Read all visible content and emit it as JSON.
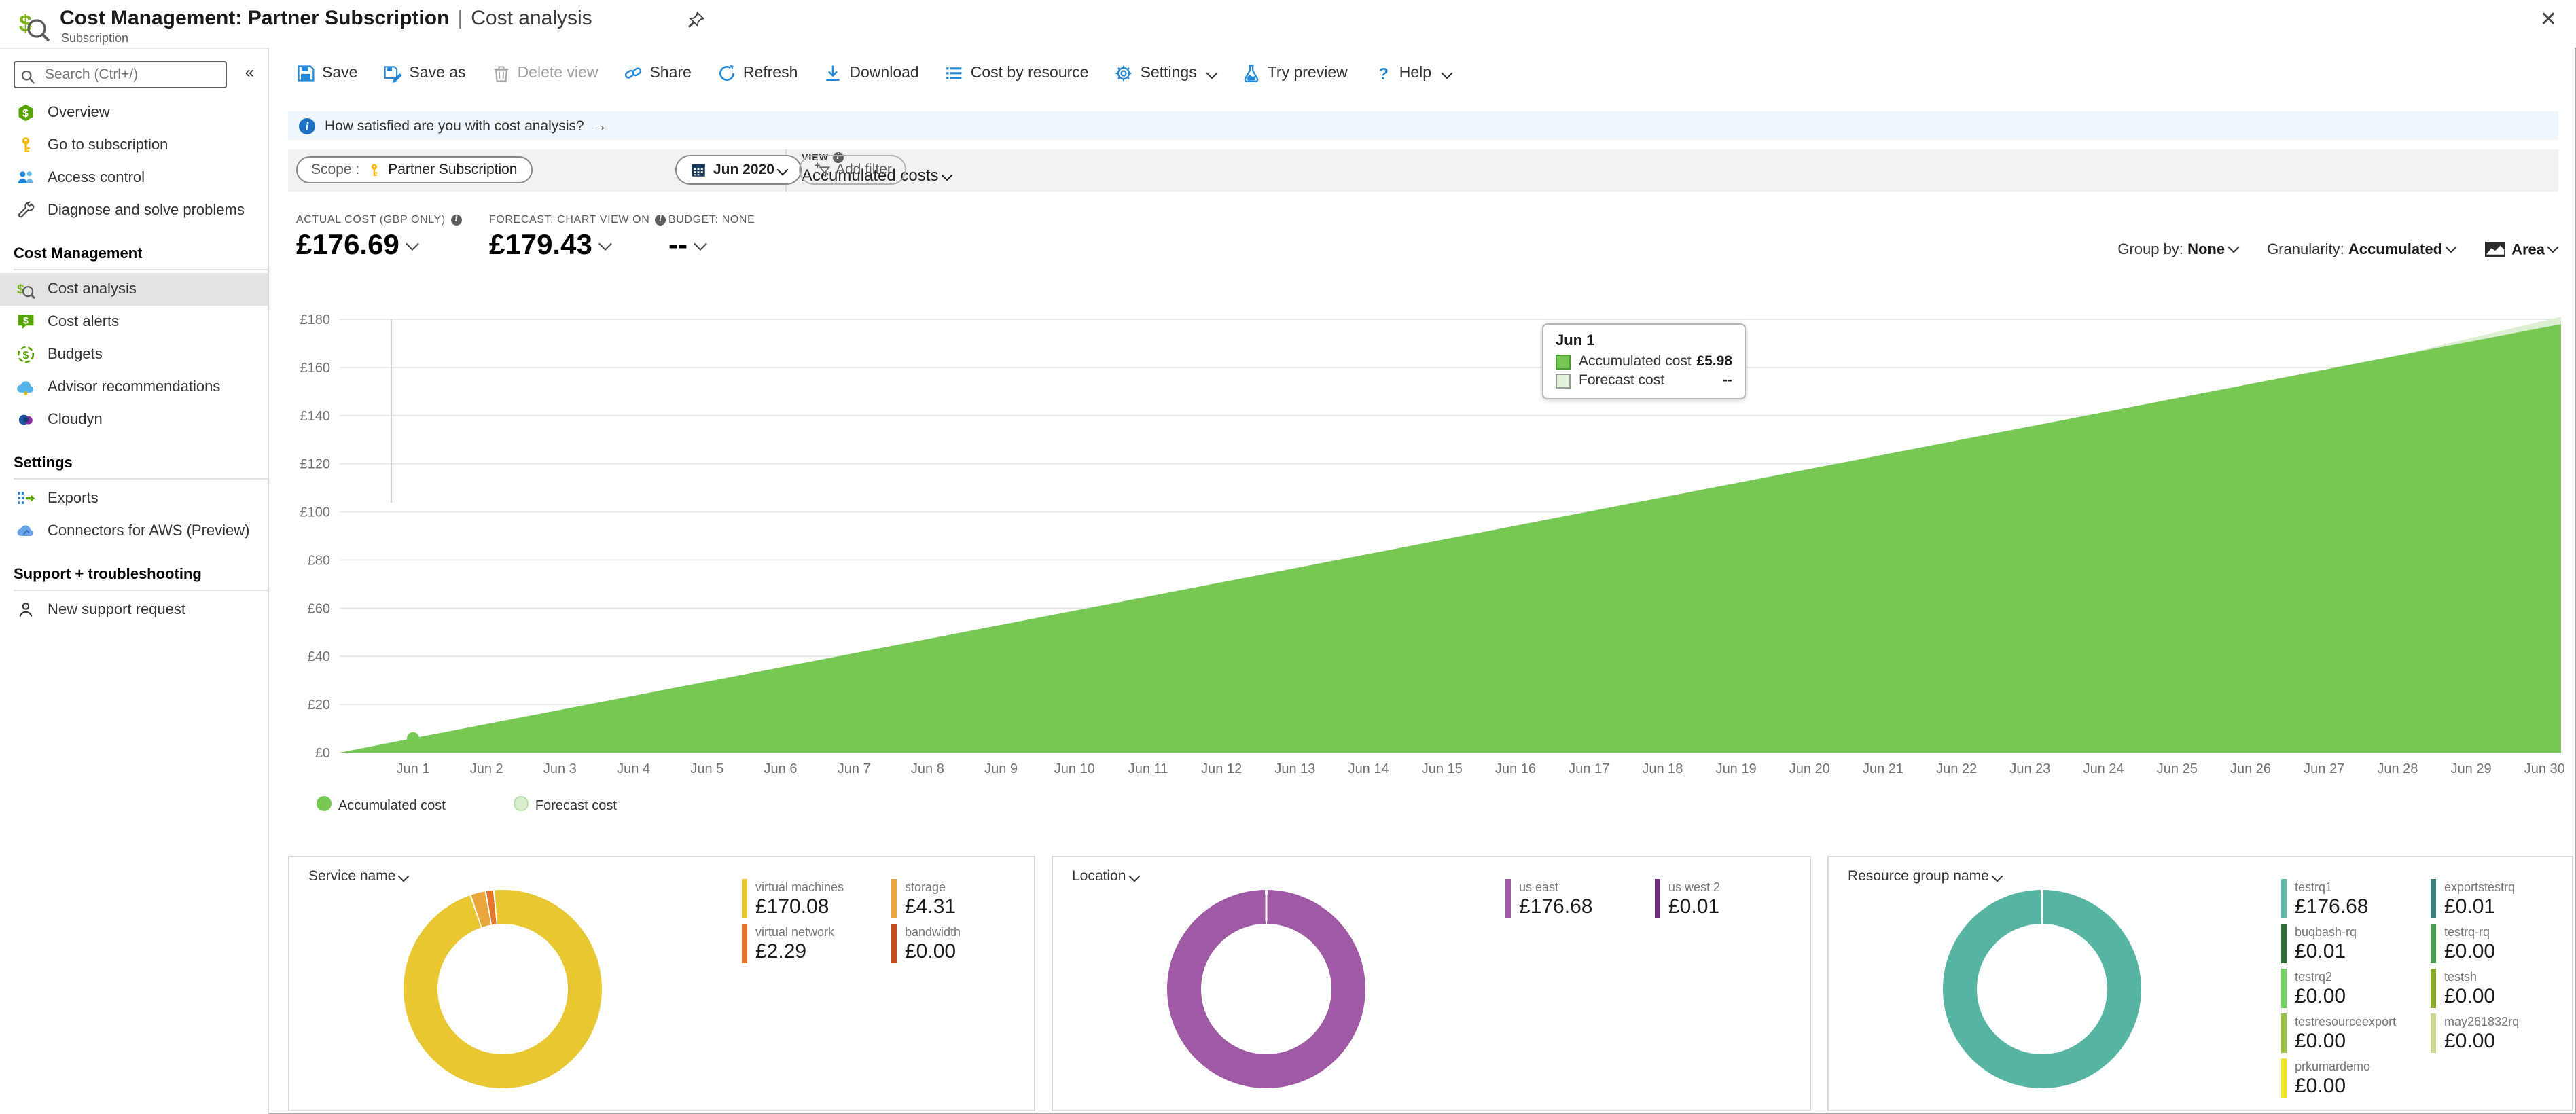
{
  "header": {
    "title_main": "Cost Management: Partner Subscription",
    "title_sep": "|",
    "title_page": "Cost analysis",
    "subtitle": "Subscription",
    "close_glyph": "✕"
  },
  "sidebar": {
    "search_placeholder": "Search (Ctrl+/)",
    "collapse_glyph": "«",
    "sections": [
      {
        "title": "",
        "items": [
          {
            "label": "Overview",
            "icon": "overview-icon"
          },
          {
            "label": "Go to subscription",
            "icon": "key-icon"
          },
          {
            "label": "Access control",
            "icon": "people-icon"
          },
          {
            "label": "Diagnose and solve problems",
            "icon": "wrench-icon"
          }
        ]
      },
      {
        "title": "Cost Management",
        "items": [
          {
            "label": "Cost analysis",
            "icon": "cost-analysis-icon",
            "selected": true
          },
          {
            "label": "Cost alerts",
            "icon": "cost-alerts-icon"
          },
          {
            "label": "Budgets",
            "icon": "budgets-icon"
          },
          {
            "label": "Advisor recommendations",
            "icon": "advisor-icon"
          },
          {
            "label": "Cloudyn",
            "icon": "cloudyn-icon"
          }
        ]
      },
      {
        "title": "Settings",
        "items": [
          {
            "label": "Exports",
            "icon": "exports-icon"
          },
          {
            "label": "Connectors for AWS (Preview)",
            "icon": "aws-cloud-icon"
          }
        ]
      },
      {
        "title": "Support + troubleshooting",
        "items": [
          {
            "label": "New support request",
            "icon": "support-icon"
          }
        ]
      }
    ]
  },
  "toolbar": {
    "items": [
      {
        "label": "Save",
        "icon": "save-icon"
      },
      {
        "label": "Save as",
        "icon": "save-as-icon"
      },
      {
        "label": "Delete view",
        "icon": "trash-icon",
        "disabled": true
      },
      {
        "label": "Share",
        "icon": "share-icon"
      },
      {
        "label": "Refresh",
        "icon": "refresh-icon"
      },
      {
        "label": "Download",
        "icon": "download-icon"
      },
      {
        "label": "Cost by resource",
        "icon": "cost-by-resource-icon"
      },
      {
        "label": "Settings",
        "icon": "gear-icon",
        "chevron": true
      },
      {
        "label": "Try preview",
        "icon": "flask-icon"
      },
      {
        "label": "Help",
        "icon": "help-icon",
        "chevron": true
      }
    ]
  },
  "banner": {
    "text": "How satisfied are you with cost analysis?",
    "arrow": "→"
  },
  "filters": {
    "scope_label": "Scope :",
    "scope_value": "Partner Subscription",
    "view_label": "VIEW",
    "view_value": "Accumulated costs",
    "date_value": "Jun 2020",
    "add_filter_label": "Add filter"
  },
  "kpis": [
    {
      "label": "ACTUAL COST (GBP ONLY)",
      "info": true,
      "value": "£176.69"
    },
    {
      "label": "FORECAST: CHART VIEW ON",
      "info": true,
      "value": "£179.43"
    },
    {
      "label": "BUDGET: NONE",
      "info": false,
      "value": "--"
    }
  ],
  "controls": {
    "group_by_label": "Group by:",
    "group_by_value": "None",
    "granularity_label": "Granularity:",
    "granularity_value": "Accumulated",
    "chart_type": "Area"
  },
  "chart_data": [
    {
      "type": "area",
      "title": "Accumulated costs",
      "currency": "£",
      "ylim": [
        0,
        180
      ],
      "y_ticks": [
        0,
        20,
        40,
        60,
        80,
        100,
        120,
        140,
        160,
        180
      ],
      "x": [
        "Jun 1",
        "Jun 2",
        "Jun 3",
        "Jun 4",
        "Jun 5",
        "Jun 6",
        "Jun 7",
        "Jun 8",
        "Jun 9",
        "Jun 10",
        "Jun 11",
        "Jun 12",
        "Jun 13",
        "Jun 14",
        "Jun 15",
        "Jun 16",
        "Jun 17",
        "Jun 18",
        "Jun 19",
        "Jun 20",
        "Jun 21",
        "Jun 22",
        "Jun 23",
        "Jun 24",
        "Jun 25",
        "Jun 26",
        "Jun 27",
        "Jun 28",
        "Jun 29",
        "Jun 30"
      ],
      "series": [
        {
          "name": "Accumulated cost",
          "color": "#77c754",
          "values": [
            5.98,
            11.87,
            17.75,
            23.64,
            29.53,
            35.41,
            41.3,
            47.19,
            53.08,
            58.96,
            64.85,
            70.74,
            76.62,
            82.51,
            88.4,
            94.28,
            100.17,
            106.06,
            111.95,
            117.83,
            123.72,
            129.61,
            135.49,
            141.38,
            147.27,
            153.15,
            159.04,
            164.93,
            170.81,
            176.69
          ]
        },
        {
          "name": "Forecast cost",
          "color": "#dcefd2",
          "x": [
            "Jun 28",
            "Jun 29",
            "Jun 30"
          ],
          "values": [
            164.93,
            172.2,
            179.43
          ]
        }
      ],
      "hover": {
        "x_label": "Jun 1",
        "value": 5.98
      },
      "tooltip": {
        "title": "Jun 1",
        "rows": [
          {
            "label": "Accumulated cost",
            "value": "£5.98",
            "swatch": "#77c754",
            "swatch_border": "#4c9a33"
          },
          {
            "label": "Forecast cost",
            "value": "--",
            "swatch": "#e3f3da",
            "swatch_border": "#9a9a9a"
          }
        ]
      },
      "legend": [
        {
          "label": "Accumulated cost",
          "color": "#77c754",
          "border": "#77c754"
        },
        {
          "label": "Forecast cost",
          "color": "#d9efcd",
          "border": "#b9dfa6"
        }
      ]
    },
    {
      "type": "donut",
      "title": "Service name",
      "slices": [
        {
          "label": "virtual machines",
          "value": 170.08,
          "display": "£170.08",
          "color": "#e9c733"
        },
        {
          "label": "storage",
          "value": 4.31,
          "display": "£4.31",
          "color": "#e9a63b"
        },
        {
          "label": "virtual network",
          "value": 2.29,
          "display": "£2.29",
          "color": "#e3762c"
        },
        {
          "label": "bandwidth",
          "value": 0.0,
          "display": "£0.00",
          "color": "#c7491e"
        }
      ],
      "segments": [
        {
          "color": "#e9c733",
          "from": 0,
          "to": 94.6
        },
        {
          "color": "#e9a63b",
          "from": 94.85,
          "to": 97.1
        },
        {
          "color": "#e3762c",
          "from": 97.35,
          "to": 98.45
        },
        {
          "color": "#e9c733",
          "from": 98.7,
          "to": 100
        }
      ]
    },
    {
      "type": "donut",
      "title": "Location",
      "slices": [
        {
          "label": "us east",
          "value": 176.68,
          "display": "£176.68",
          "color": "#a05aa5"
        },
        {
          "label": "us west 2",
          "value": 0.01,
          "display": "£0.01",
          "color": "#6b2e79"
        }
      ],
      "segments": [
        {
          "color": "#a05aa5",
          "from": 0.2,
          "to": 99.8
        }
      ]
    },
    {
      "type": "donut",
      "title": "Resource group name",
      "slices": [
        {
          "label": "testrq1",
          "value": 176.68,
          "display": "£176.68",
          "color": "#5cb8a6"
        },
        {
          "label": "exportstestrq",
          "value": 0.01,
          "display": "£0.01",
          "color": "#3d7e78"
        },
        {
          "label": "buqbash-rq",
          "value": 0.01,
          "display": "£0.01",
          "color": "#2d6e35"
        },
        {
          "label": "testrq-rq",
          "value": 0.0,
          "display": "£0.00",
          "color": "#4d9e50"
        },
        {
          "label": "testrq2",
          "value": 0.0,
          "display": "£0.00",
          "color": "#6fd45f"
        },
        {
          "label": "testsh",
          "value": 0.0,
          "display": "£0.00",
          "color": "#8aab25"
        },
        {
          "label": "testresourceexport",
          "value": 0.0,
          "display": "£0.00",
          "color": "#97c33d"
        },
        {
          "label": "may261832rq",
          "value": 0.0,
          "display": "£0.00",
          "color": "#ccd592"
        },
        {
          "label": "prkumardemo",
          "value": 0.0,
          "display": "£0.00",
          "color": "#f2e730"
        }
      ],
      "segments": [
        {
          "color": "#57b4a1",
          "from": 0.2,
          "to": 99.8
        }
      ]
    }
  ],
  "panels": [
    {
      "title": "Service name",
      "chart": 1
    },
    {
      "title": "Location",
      "chart": 2
    },
    {
      "title": "Resource group name",
      "chart": 3
    }
  ]
}
